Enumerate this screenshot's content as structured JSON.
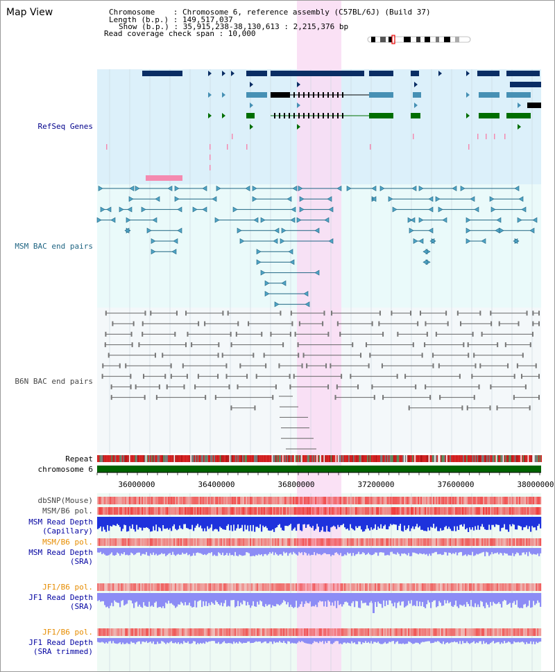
{
  "header": {
    "title": "Map View",
    "info_lines": [
      "Chromosome    : Chromosome 6, reference assembly (C57BL/6J) (Build 37)",
      "Length (b.p.) : 149,517,037",
      "Show (b.p.) : 35,915,238-38,130,613 : 2,215,376 bp",
      "Read coverage check span : 10,000"
    ]
  },
  "tracks": {
    "refseq": "RefSeq Genes",
    "msm_bac": "MSM BAC end pairs",
    "b6n_bac": "B6N BAC end pairs",
    "repeat": "Repeat",
    "chromosome": "chromosome 6",
    "dbsnp": "dbSNP(Mouse)",
    "msm_b6_pol_1": "MSM/B6 pol.",
    "msm_read_depth_cap_1": "MSM Read Depth",
    "msm_read_depth_cap_2": "(Capillary)",
    "msm_b6_pol_2": "MSM/B6 pol.",
    "msm_read_depth_sra_1": "MSM Read Depth",
    "msm_read_depth_sra_2": "(SRA)",
    "jf1_b6_pol_1": "JF1/B6 pol.",
    "jf1_read_depth_sra_1": "JF1 Read Depth",
    "jf1_read_depth_sra_2": "(SRA)",
    "jf1_b6_pol_2": "JF1/B6 pol.",
    "jf1_read_depth_trim_1": "JF1 Read Depth",
    "jf1_read_depth_trim_2": "(SRA trimmed)"
  },
  "axis": {
    "ticks": [
      "36000000",
      "36400000",
      "36800000",
      "37200000",
      "37600000",
      "38000000"
    ]
  },
  "colors": {
    "highlight": "#f9dcf3",
    "refseq_bg": "#dcf0fa",
    "bac_bg": "#eafafa",
    "gene_dark": "#0a2d64",
    "gene_mid": "#4690b4",
    "gene_green": "#006e00",
    "msm_line": "#1e6482",
    "b6n_line": "#646464",
    "blue_depth": "#1e32dc",
    "light_depth": "#8c8cf5",
    "pol_red": "#f05050"
  }
}
